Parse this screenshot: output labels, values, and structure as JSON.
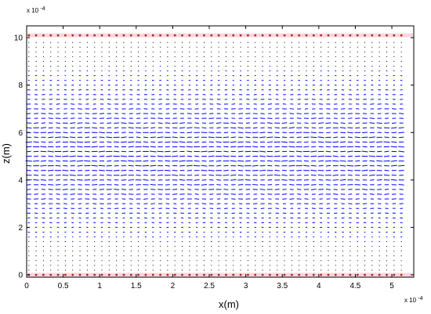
{
  "chart_data": {
    "type": "vector-field",
    "title": "",
    "xlabel": "x(m)",
    "ylabel": "z(m)",
    "xlim": [
      0,
      5.3
    ],
    "ylim": [
      -0.1,
      10.5
    ],
    "x_ticks": [
      0,
      0.5,
      1,
      1.5,
      2,
      2.5,
      3,
      3.5,
      4,
      4.5,
      5
    ],
    "x_tick_labels": [
      "0",
      "0.5",
      "1",
      "1.5",
      "2",
      "2.5",
      "3",
      "3.5",
      "4",
      "4.5",
      "5"
    ],
    "y_ticks": [
      0,
      2,
      4,
      6,
      8,
      10
    ],
    "y_tick_labels": [
      "0",
      "2",
      "4",
      "6",
      "8",
      "10"
    ],
    "x_exponent_label": "x 10",
    "x_exponent_power": "-4",
    "y_exponent_label": "x 10",
    "y_exponent_power": "-4",
    "grid": false,
    "field": {
      "x_start": 0.03,
      "x_end": 5.15,
      "x_step": 0.1,
      "z_start": 0.2,
      "z_end": 9.8,
      "z_step": 0.2,
      "max_arrow_length": 0.09,
      "color": "#0000ff"
    },
    "boundaries": {
      "z_values": [
        0,
        10.1
      ],
      "x_step": 0.1,
      "particle_color": "#b8251f",
      "band_color": "#f4b9c6"
    }
  }
}
